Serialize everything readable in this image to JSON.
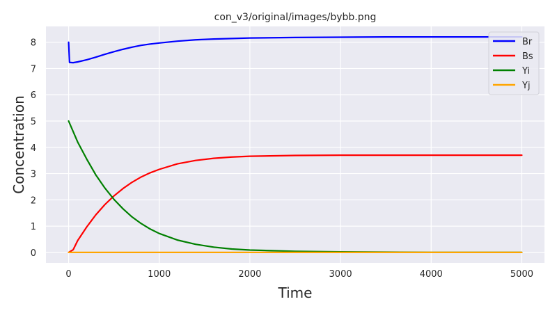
{
  "chart_data": {
    "type": "line",
    "title": "con_v3/original/images/bybb.png",
    "xlabel": "Time",
    "ylabel": "Concentration",
    "xlim": [
      -250,
      5250
    ],
    "ylim": [
      -0.4,
      8.6
    ],
    "xticks": [
      0,
      1000,
      2000,
      3000,
      4000,
      5000
    ],
    "yticks": [
      0,
      1,
      2,
      3,
      4,
      5,
      6,
      7,
      8
    ],
    "grid": true,
    "legend_position": "top-right",
    "series": [
      {
        "name": "Br",
        "color": "#0000ff",
        "x": [
          0,
          10,
          50,
          100,
          200,
          300,
          400,
          500,
          600,
          700,
          800,
          900,
          1000,
          1200,
          1400,
          1600,
          1800,
          2000,
          2500,
          3000,
          3500,
          4000,
          4500,
          5000
        ],
        "y": [
          8.0,
          7.23,
          7.22,
          7.25,
          7.33,
          7.43,
          7.54,
          7.64,
          7.73,
          7.81,
          7.88,
          7.93,
          7.97,
          8.04,
          8.09,
          8.12,
          8.14,
          8.16,
          8.18,
          8.19,
          8.2,
          8.2,
          8.2,
          8.2
        ]
      },
      {
        "name": "Bs",
        "color": "#ff0000",
        "x": [
          0,
          50,
          100,
          200,
          300,
          400,
          500,
          600,
          700,
          800,
          900,
          1000,
          1200,
          1400,
          1600,
          1800,
          2000,
          2500,
          3000,
          3500,
          4000,
          4500,
          5000
        ],
        "y": [
          0.0,
          0.1,
          0.45,
          0.97,
          1.43,
          1.82,
          2.15,
          2.43,
          2.67,
          2.87,
          3.03,
          3.16,
          3.37,
          3.5,
          3.58,
          3.63,
          3.66,
          3.69,
          3.7,
          3.7,
          3.7,
          3.7,
          3.7
        ]
      },
      {
        "name": "Yi",
        "color": "#008000",
        "x": [
          0,
          100,
          200,
          300,
          400,
          500,
          600,
          700,
          800,
          900,
          1000,
          1200,
          1400,
          1600,
          1800,
          2000,
          2500,
          3000,
          3500,
          4000,
          4500,
          5000
        ],
        "y": [
          5.0,
          4.2,
          3.55,
          2.95,
          2.45,
          2.02,
          1.66,
          1.35,
          1.1,
          0.89,
          0.72,
          0.47,
          0.31,
          0.2,
          0.13,
          0.09,
          0.04,
          0.02,
          0.01,
          0.0,
          0.0,
          0.0
        ]
      },
      {
        "name": "Yj",
        "color": "#ffa500",
        "x": [
          0,
          5000
        ],
        "y": [
          0.0,
          0.0
        ]
      }
    ]
  }
}
